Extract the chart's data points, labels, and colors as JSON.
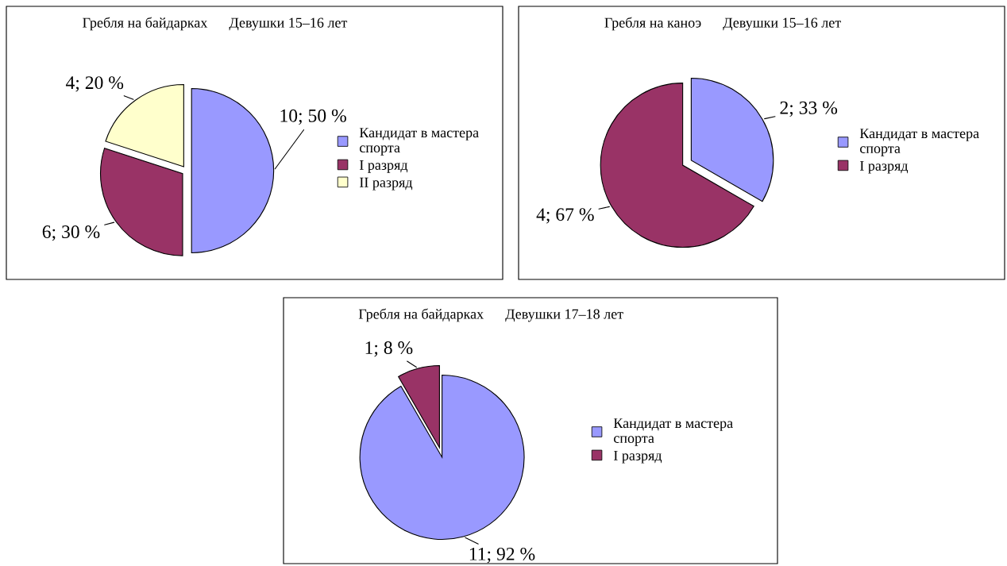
{
  "chart_data": [
    {
      "type": "pie",
      "title": "Гребля на байдарках      Девушки 15–16 лет",
      "categories": [
        "Кандидат в мастера\nспорта",
        "I разряд",
        "II разряд"
      ],
      "values": [
        10,
        6,
        4
      ],
      "colors": [
        "#9999ff",
        "#993366",
        "#ffffcc"
      ],
      "value_labels": [
        "10; 50 %",
        "6; 30 %",
        "4; 20 %"
      ],
      "legend": "right"
    },
    {
      "type": "pie",
      "title": "Гребля на каноэ      Девушки 15–16 лет",
      "categories": [
        "Кандидат в мастера\nспорта",
        "I разряд"
      ],
      "values": [
        2,
        4
      ],
      "colors": [
        "#9999ff",
        "#993366"
      ],
      "value_labels": [
        "2; 33 %",
        "4; 67 %"
      ],
      "legend": "right"
    },
    {
      "type": "pie",
      "title": "Гребля на байдарках      Девушки 17–18 лет",
      "categories": [
        "Кандидат в мастера\nспорта",
        "I разряд"
      ],
      "values": [
        11,
        1
      ],
      "colors": [
        "#9999ff",
        "#993366"
      ],
      "value_labels": [
        "11; 92 %",
        "1; 8 %"
      ],
      "legend": "right"
    }
  ]
}
